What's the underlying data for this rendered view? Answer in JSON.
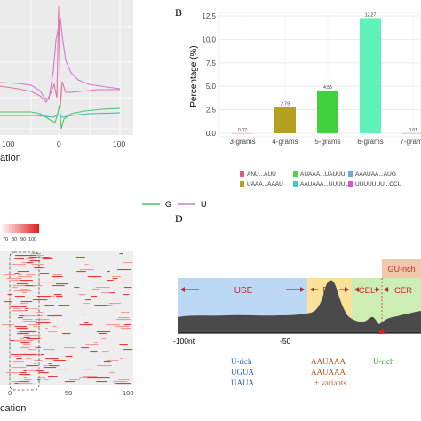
{
  "panels": {
    "b_label": "B",
    "d_label": "D"
  },
  "panel_a": {
    "x_ticks": [
      "100",
      "0",
      "100"
    ],
    "xlabel_fragment": "ation",
    "legend": [
      {
        "label": "G",
        "color": "#4cc36a"
      },
      {
        "label": "U",
        "color": "#c77dd6"
      }
    ]
  },
  "panel_c": {
    "scale_ticks": [
      "70",
      "80",
      "90",
      "100"
    ],
    "x_ticks": [
      "0",
      "50",
      "100"
    ],
    "xlabel_fragment": "cation"
  },
  "panel_d": {
    "regions": [
      {
        "label": "USE",
        "color": "#bcd8f5"
      },
      {
        "label": "PE",
        "color": "#fbe29a"
      },
      {
        "label": "CEL",
        "color": "#cdeeb2"
      },
      {
        "label": "CER",
        "color": "#cdeeb2"
      }
    ],
    "gu_rich": "GU-rich",
    "axis_ticks": [
      "-100nt",
      "-50"
    ],
    "use_motifs": [
      "U-rich",
      "UGUA",
      "UAUA"
    ],
    "pe_motifs": [
      "AAUAAA",
      "AAUAAA",
      "+ variants"
    ],
    "cel_motif": "U-rich",
    "colors": {
      "motif_blue": "#2b62c4",
      "motif_orange": "#b3541e",
      "motif_green": "#2e9a3a",
      "arrow_red": "#c0282a"
    }
  },
  "chart_data": [
    {
      "panel": "B",
      "type": "bar",
      "categories": [
        "3-grams",
        "4-grams",
        "5-grams",
        "6-grams",
        "7-grams"
      ],
      "values": [
        0.02,
        2.79,
        4.56,
        12.27,
        0.01
      ],
      "value_labels": [
        "0.02",
        "2.79",
        "4.56",
        "12.27",
        "0.01"
      ],
      "colors": [
        "#f08fa0",
        "#b6a020",
        "#3fd13f",
        "#5ff2b8",
        "#f07fd8"
      ],
      "xlabel": "",
      "ylabel": "Percentage (%)",
      "ylim": [
        0,
        12.5
      ],
      "y_ticks": [
        "0.0",
        "2.5",
        "5.0",
        "7.5",
        "10.0",
        "12.5"
      ],
      "grid": true,
      "legend": [
        {
          "label": "ANU...AUU",
          "color": "#e15a7a"
        },
        {
          "label": "AUAAA...UAUUU",
          "color": "#54d24a"
        },
        {
          "label": "AAAUAA...AUG",
          "color": "#6fa6e8"
        },
        {
          "label": "UAAA...AAAU",
          "color": "#b6a020"
        },
        {
          "label": "AAUAAA...UUUUUA",
          "color": "#40d0b0"
        },
        {
          "label": "UUUUUUU...CCU",
          "color": "#d05ad0"
        }
      ]
    }
  ]
}
